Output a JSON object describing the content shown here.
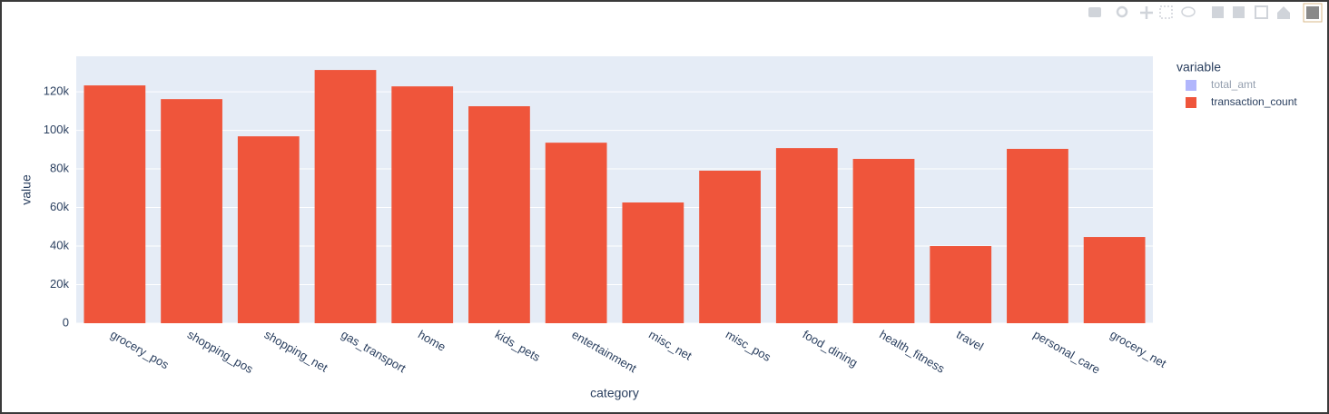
{
  "chart_data": {
    "type": "bar",
    "x_label": "category",
    "y_label": "value",
    "legend_title": "variable",
    "legend": "right",
    "categories": [
      "grocery_pos",
      "shopping_pos",
      "shopping_net",
      "gas_transport",
      "home",
      "kids_pets",
      "entertainment",
      "misc_net",
      "misc_pos",
      "food_dining",
      "health_fitness",
      "travel",
      "personal_care",
      "grocery_net"
    ],
    "series": [
      {
        "name": "total_amt",
        "color": "#636efa",
        "visible": "legendonly",
        "values": [
          null,
          null,
          null,
          null,
          null,
          null,
          null,
          null,
          null,
          null,
          null,
          null,
          null,
          null
        ]
      },
      {
        "name": "transaction_count",
        "color": "#ef553b",
        "values": [
          123300,
          116200,
          96900,
          131300,
          122800,
          112500,
          93600,
          62600,
          79100,
          90800,
          85200,
          40000,
          90400,
          44700
        ]
      }
    ],
    "ylim": [
      0,
      138400
    ],
    "yticks": [
      0,
      {
        "value": 20000,
        "label": "20k"
      },
      {
        "value": 40000,
        "label": "40k"
      },
      {
        "value": 60000,
        "label": "60k"
      },
      {
        "value": 80000,
        "label": "80k"
      },
      {
        "value": 100000,
        "label": "100k"
      },
      {
        "value": 120000,
        "label": "120k"
      }
    ],
    "grid": true
  }
}
